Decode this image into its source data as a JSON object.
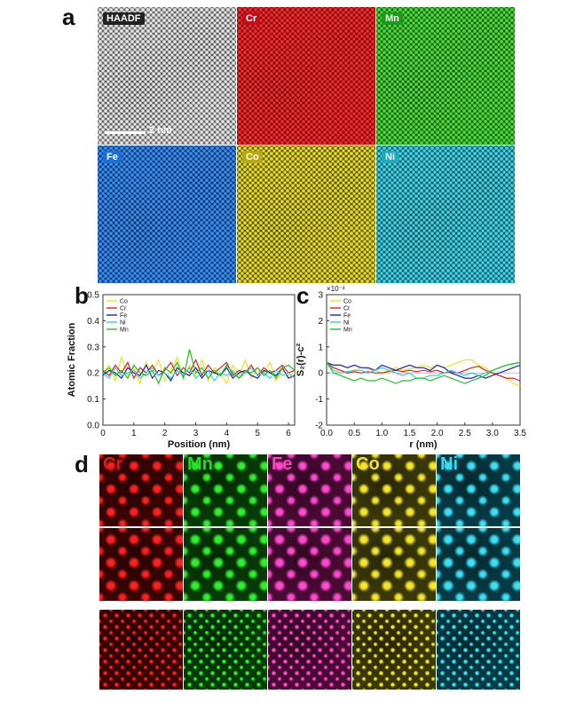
{
  "panel_a": {
    "letter": "a",
    "tiles": [
      {
        "label": "HAADF",
        "bg": "#555555",
        "dot": "#e6e6e6",
        "label_bg": "#222222"
      },
      {
        "label": "Cr",
        "bg": "#5a0508",
        "dot": "#ff2a2a",
        "label_bg": "#c0101a"
      },
      {
        "label": "Mn",
        "bg": "#0f4a0c",
        "dot": "#4fe03a",
        "label_bg": "#1d9a18"
      },
      {
        "label": "Fe",
        "bg": "#0c2f66",
        "dot": "#3a8ff0",
        "label_bg": "#1a6fd0"
      },
      {
        "label": "Co",
        "bg": "#4a4506",
        "dot": "#eade2a",
        "label_bg": "#b9a90c"
      },
      {
        "label": "Ni",
        "bg": "#0b4550",
        "dot": "#40d8ea",
        "label_bg": "#1fa9bc"
      }
    ],
    "scale_label": "2 nm"
  },
  "panel_b": {
    "letter": "b"
  },
  "panel_c": {
    "letter": "c",
    "exponent": "×10⁻³"
  },
  "panel_d": {
    "letter": "d",
    "columns": [
      {
        "label": "Cr",
        "color": "#e01818",
        "bg": "#3a0404",
        "dot": "#ff2020"
      },
      {
        "label": "Mn",
        "color": "#2ad82a",
        "bg": "#063a06",
        "dot": "#2ef02e"
      },
      {
        "label": "Fe",
        "color": "#ff40c0",
        "bg": "#4a0a34",
        "dot": "#ff4ad0"
      },
      {
        "label": "Co",
        "color": "#f2e02a",
        "bg": "#3a3808",
        "dot": "#f5e628"
      },
      {
        "label": "Ni",
        "color": "#38d8f0",
        "bg": "#063a44",
        "dot": "#3ae0f5"
      }
    ]
  },
  "chart_data": [
    {
      "type": "line",
      "xlabel": "Position (nm)",
      "ylabel": "Atomic Fraction",
      "xlim": [
        0,
        6.2
      ],
      "ylim": [
        0,
        0.5
      ],
      "xticks": [
        "0",
        "1",
        "2",
        "3",
        "4",
        "5",
        "6"
      ],
      "yticks": [
        "0.0",
        "0.1",
        "0.2",
        "0.3",
        "0.4",
        "0.5"
      ],
      "legend_position": "top-left",
      "x": [
        0.0,
        0.2,
        0.4,
        0.6,
        0.8,
        1.0,
        1.2,
        1.4,
        1.6,
        1.8,
        2.0,
        2.2,
        2.4,
        2.6,
        2.8,
        3.0,
        3.2,
        3.4,
        3.6,
        3.8,
        4.0,
        4.2,
        4.4,
        4.6,
        4.8,
        5.0,
        5.2,
        5.4,
        5.6,
        5.8,
        6.0,
        6.2
      ],
      "series": [
        {
          "name": "Co",
          "color": "#f0e020",
          "values": [
            0.2,
            0.23,
            0.17,
            0.26,
            0.19,
            0.22,
            0.16,
            0.24,
            0.2,
            0.25,
            0.17,
            0.21,
            0.26,
            0.18,
            0.23,
            0.19,
            0.25,
            0.17,
            0.22,
            0.2,
            0.16,
            0.23,
            0.19,
            0.25,
            0.18,
            0.22,
            0.2,
            0.24,
            0.17,
            0.21,
            0.19,
            0.2
          ]
        },
        {
          "name": "Cr",
          "color": "#e02020",
          "values": [
            0.21,
            0.19,
            0.23,
            0.2,
            0.24,
            0.18,
            0.22,
            0.2,
            0.23,
            0.19,
            0.21,
            0.24,
            0.19,
            0.22,
            0.2,
            0.25,
            0.19,
            0.23,
            0.2,
            0.22,
            0.24,
            0.19,
            0.21,
            0.2,
            0.23,
            0.19,
            0.22,
            0.2,
            0.21,
            0.23,
            0.2,
            0.21
          ]
        },
        {
          "name": "Fe",
          "color": "#2020c0",
          "values": [
            0.19,
            0.21,
            0.2,
            0.18,
            0.22,
            0.2,
            0.19,
            0.23,
            0.18,
            0.21,
            0.2,
            0.17,
            0.22,
            0.2,
            0.19,
            0.22,
            0.18,
            0.21,
            0.2,
            0.19,
            0.22,
            0.18,
            0.2,
            0.21,
            0.19,
            0.18,
            0.21,
            0.2,
            0.19,
            0.22,
            0.18,
            0.19
          ]
        },
        {
          "name": "Ni",
          "color": "#30d0e8",
          "values": [
            0.2,
            0.18,
            0.22,
            0.19,
            0.2,
            0.21,
            0.18,
            0.2,
            0.22,
            0.19,
            0.2,
            0.18,
            0.21,
            0.19,
            0.22,
            0.18,
            0.2,
            0.21,
            0.17,
            0.2,
            0.19,
            0.21,
            0.18,
            0.2,
            0.22,
            0.19,
            0.2,
            0.18,
            0.21,
            0.19,
            0.2,
            0.18
          ]
        },
        {
          "name": "Mn",
          "color": "#20c020",
          "values": [
            0.2,
            0.22,
            0.19,
            0.21,
            0.18,
            0.23,
            0.2,
            0.19,
            0.21,
            0.16,
            0.22,
            0.2,
            0.24,
            0.18,
            0.29,
            0.2,
            0.22,
            0.18,
            0.21,
            0.19,
            0.23,
            0.2,
            0.18,
            0.21,
            0.2,
            0.22,
            0.19,
            0.21,
            0.18,
            0.22,
            0.23,
            0.21
          ]
        }
      ]
    },
    {
      "type": "line",
      "xlabel": "r (nm)",
      "ylabel": "S₂(r)-c²",
      "xlim": [
        0,
        3.5
      ],
      "ylim": [
        -2,
        3
      ],
      "xticks": [
        "0.0",
        "0.5",
        "1.0",
        "1.5",
        "2.0",
        "2.5",
        "3.0",
        "3.5"
      ],
      "yticks": [
        "-2",
        "-1",
        "0",
        "1",
        "2",
        "3"
      ],
      "legend_position": "top-left",
      "x": [
        0.0,
        0.125,
        0.25,
        0.375,
        0.5,
        0.625,
        0.75,
        0.875,
        1.0,
        1.125,
        1.25,
        1.375,
        1.5,
        1.625,
        1.75,
        1.875,
        2.0,
        2.125,
        2.25,
        2.375,
        2.5,
        2.625,
        2.75,
        2.875,
        3.0,
        3.125,
        3.25,
        3.375,
        3.5
      ],
      "series": [
        {
          "name": "Co",
          "color": "#f0e020",
          "values": [
            0.4,
            0.2,
            0.1,
            0.05,
            0.1,
            0.2,
            0.15,
            0.1,
            0.0,
            0.1,
            0.2,
            0.1,
            0.15,
            0.2,
            0.3,
            0.2,
            0.3,
            0.2,
            0.3,
            0.4,
            0.5,
            0.5,
            0.3,
            0.2,
            0.0,
            -0.1,
            -0.2,
            -0.4,
            -0.5
          ]
        },
        {
          "name": "Cr",
          "color": "#e02020",
          "values": [
            0.4,
            0.2,
            0.1,
            0.0,
            0.05,
            0.0,
            0.05,
            0.0,
            0.0,
            0.05,
            0.1,
            0.05,
            0.1,
            0.05,
            0.1,
            0.05,
            0.1,
            0.0,
            0.05,
            0.0,
            0.1,
            0.2,
            0.25,
            0.1,
            0.0,
            -0.1,
            -0.2,
            -0.2,
            -0.3
          ]
        },
        {
          "name": "Fe",
          "color": "#2020c0",
          "values": [
            0.4,
            0.3,
            0.3,
            0.2,
            0.3,
            0.2,
            0.2,
            0.1,
            0.3,
            0.2,
            0.1,
            0.2,
            0.3,
            0.2,
            0.2,
            0.1,
            0.3,
            0.2,
            0.0,
            -0.1,
            -0.2,
            -0.2,
            -0.1,
            -0.2,
            -0.1,
            0.0,
            0.1,
            0.2,
            0.3
          ]
        },
        {
          "name": "Ni",
          "color": "#30d0e8",
          "values": [
            0.4,
            0.1,
            0.0,
            0.05,
            0.1,
            0.1,
            0.0,
            0.1,
            0.2,
            0.1,
            0.0,
            -0.1,
            0.0,
            -0.2,
            -0.2,
            -0.1,
            -0.1,
            0.0,
            0.1,
            0.0,
            -0.1,
            0.0,
            -0.1,
            0.0,
            0.1,
            0.2,
            0.3,
            0.35,
            0.4
          ]
        },
        {
          "name": "Mn",
          "color": "#20c020",
          "values": [
            0.4,
            0.0,
            -0.1,
            -0.2,
            -0.3,
            -0.2,
            -0.3,
            -0.3,
            -0.2,
            -0.3,
            -0.4,
            -0.3,
            -0.3,
            -0.2,
            -0.2,
            -0.3,
            -0.2,
            -0.1,
            -0.2,
            -0.3,
            -0.4,
            -0.3,
            -0.2,
            -0.1,
            0.1,
            0.2,
            0.3,
            0.35,
            0.4
          ]
        }
      ]
    }
  ]
}
